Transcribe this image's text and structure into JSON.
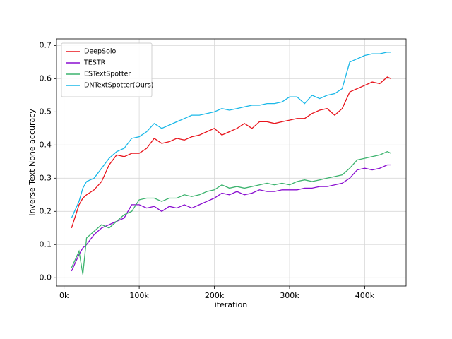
{
  "chart_data": {
    "type": "line",
    "x_label": "iteration",
    "y_label": "Inverse Text None accuracy",
    "x": [
      10000,
      20000,
      25000,
      30000,
      40000,
      50000,
      60000,
      70000,
      80000,
      90000,
      100000,
      110000,
      120000,
      130000,
      140000,
      150000,
      160000,
      170000,
      180000,
      190000,
      200000,
      210000,
      220000,
      230000,
      240000,
      250000,
      260000,
      270000,
      280000,
      290000,
      300000,
      310000,
      320000,
      330000,
      340000,
      350000,
      360000,
      370000,
      380000,
      390000,
      400000,
      410000,
      420000,
      430000,
      435000
    ],
    "series": [
      {
        "name": "DeepSolo",
        "color": "#e8141c",
        "values": [
          0.15,
          0.22,
          0.24,
          0.25,
          0.265,
          0.29,
          0.34,
          0.37,
          0.365,
          0.375,
          0.375,
          0.39,
          0.42,
          0.405,
          0.41,
          0.42,
          0.415,
          0.425,
          0.43,
          0.44,
          0.45,
          0.43,
          0.44,
          0.45,
          0.465,
          0.45,
          0.47,
          0.47,
          0.465,
          0.47,
          0.475,
          0.48,
          0.48,
          0.495,
          0.505,
          0.51,
          0.49,
          0.51,
          0.56,
          0.57,
          0.58,
          0.59,
          0.585,
          0.605,
          0.6
        ]
      },
      {
        "name": "TESTR",
        "color": "#8a0ed0",
        "values": [
          0.02,
          0.07,
          0.09,
          0.1,
          0.13,
          0.15,
          0.16,
          0.17,
          0.18,
          0.22,
          0.22,
          0.21,
          0.215,
          0.2,
          0.215,
          0.21,
          0.22,
          0.21,
          0.22,
          0.23,
          0.24,
          0.255,
          0.25,
          0.26,
          0.25,
          0.255,
          0.265,
          0.26,
          0.26,
          0.265,
          0.265,
          0.265,
          0.27,
          0.27,
          0.275,
          0.275,
          0.28,
          0.285,
          0.3,
          0.325,
          0.33,
          0.325,
          0.33,
          0.34,
          0.34
        ]
      },
      {
        "name": "ESTextSpotter",
        "color": "#3cb36e",
        "values": [
          0.03,
          0.08,
          0.01,
          0.12,
          0.14,
          0.16,
          0.15,
          0.17,
          0.19,
          0.2,
          0.235,
          0.24,
          0.24,
          0.23,
          0.24,
          0.24,
          0.25,
          0.245,
          0.25,
          0.26,
          0.265,
          0.28,
          0.27,
          0.275,
          0.27,
          0.275,
          0.28,
          0.285,
          0.28,
          0.285,
          0.28,
          0.29,
          0.295,
          0.29,
          0.295,
          0.3,
          0.305,
          0.31,
          0.33,
          0.355,
          0.36,
          0.365,
          0.37,
          0.38,
          0.375
        ]
      },
      {
        "name": "DNTextSpotter(Ours)",
        "color": "#1ab8e8",
        "values": [
          0.18,
          0.23,
          0.27,
          0.29,
          0.3,
          0.33,
          0.36,
          0.38,
          0.39,
          0.42,
          0.425,
          0.44,
          0.465,
          0.45,
          0.46,
          0.47,
          0.48,
          0.49,
          0.49,
          0.495,
          0.5,
          0.51,
          0.505,
          0.51,
          0.515,
          0.52,
          0.52,
          0.525,
          0.525,
          0.53,
          0.545,
          0.545,
          0.525,
          0.55,
          0.54,
          0.55,
          0.555,
          0.57,
          0.65,
          0.66,
          0.67,
          0.675,
          0.675,
          0.68,
          0.68
        ]
      }
    ],
    "xlim": [
      -10000,
      455000
    ],
    "xticks": [
      {
        "value": 0,
        "label": "0k"
      },
      {
        "value": 100000,
        "label": "100k"
      },
      {
        "value": 200000,
        "label": "200k"
      },
      {
        "value": 300000,
        "label": "300k"
      },
      {
        "value": 400000,
        "label": "400k"
      }
    ],
    "ylim": [
      -0.025,
      0.72
    ],
    "yticks": [
      {
        "value": 0,
        "label": "0.0"
      },
      0.1,
      0.2,
      0.3,
      0.4,
      0.5,
      0.6,
      0.7
    ],
    "grid": true,
    "legend": "upper left"
  }
}
